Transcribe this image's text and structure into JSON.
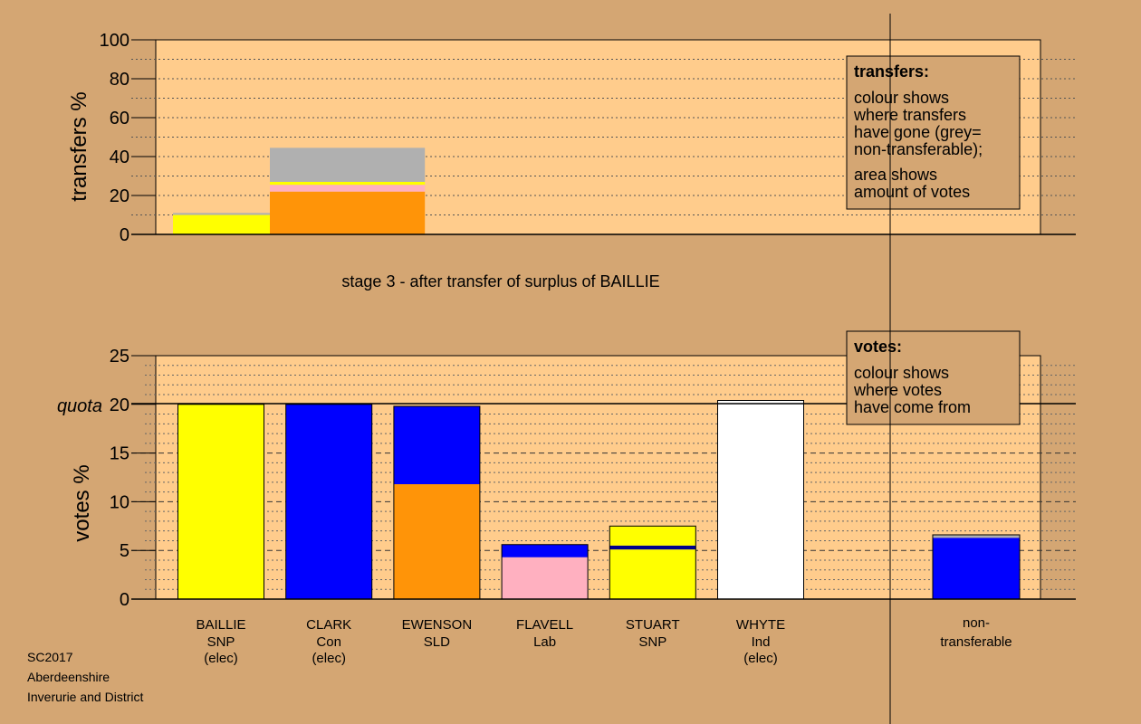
{
  "colors": {
    "background": "#d4a673",
    "plot_bg": "#ffcc8c",
    "yellow": "#ffff00",
    "blue": "#0000ff",
    "orange": "#ff9408",
    "pink": "#ffb0c0",
    "white": "#ffffff",
    "grey": "#b0b0b0",
    "navy": "#00008b"
  },
  "chart_data": [
    {
      "type": "bar",
      "ylabel": "transfers %",
      "ylim": [
        0,
        100
      ],
      "yticks": [
        "0",
        "20",
        "40",
        "60",
        "80",
        "100"
      ],
      "caption": "stage 3 - after transfer of surplus of BAILLIE",
      "legend": {
        "title": "transfers:",
        "lines1": [
          "colour shows",
          "where transfers",
          "have gone (grey=",
          "non-transferable);"
        ],
        "lines2": [
          "area shows",
          "amount of votes"
        ]
      },
      "blocks": [
        {
          "x_from": 0,
          "x_to": 1,
          "segments": [
            {
              "color": "yellow",
              "from": 0,
              "to": 10
            },
            {
              "color": "grey",
              "from": 10,
              "to": 11
            }
          ]
        },
        {
          "x_from": 1,
          "x_to": 2.6,
          "segments": [
            {
              "color": "orange",
              "from": 0,
              "to": 22
            },
            {
              "color": "pink",
              "from": 22,
              "to": 25.5
            },
            {
              "color": "yellow",
              "from": 25.5,
              "to": 27
            },
            {
              "color": "grey",
              "from": 27,
              "to": 44.5
            }
          ]
        }
      ]
    },
    {
      "type": "bar",
      "ylabel": "votes %",
      "ylim": [
        0,
        25
      ],
      "yticks": [
        "0",
        "5",
        "10",
        "15",
        "20",
        "25"
      ],
      "quota": {
        "label": "quota",
        "value": 20
      },
      "legend": {
        "title": "votes:",
        "lines1": [
          "colour shows",
          "where votes",
          "have come from"
        ]
      },
      "categories": [
        {
          "name": "BAILLIE",
          "party": "SNP",
          "note": "(elec)"
        },
        {
          "name": "CLARK",
          "party": "Con",
          "note": "(elec)"
        },
        {
          "name": "EWENSON",
          "party": "SLD",
          "note": ""
        },
        {
          "name": "FLAVELL",
          "party": "Lab",
          "note": ""
        },
        {
          "name": "STUART",
          "party": "SNP",
          "note": ""
        },
        {
          "name": "WHYTE",
          "party": "Ind",
          "note": "(elec)"
        }
      ],
      "bars": [
        [
          {
            "color": "yellow",
            "value": 20
          }
        ],
        [
          {
            "color": "blue",
            "value": 20
          }
        ],
        [
          {
            "color": "orange",
            "value": 11.8
          },
          {
            "color": "blue",
            "value": 8
          }
        ],
        [
          {
            "color": "pink",
            "value": 4.3
          },
          {
            "color": "blue",
            "value": 1.3
          }
        ],
        [
          {
            "color": "yellow",
            "value": 5.1
          },
          {
            "color": "navy",
            "value": 0.4
          },
          {
            "color": "yellow",
            "value": 2
          }
        ],
        [
          {
            "color": "white",
            "value": 20.4
          }
        ]
      ],
      "nontransferable": {
        "label_lines": [
          "non-",
          "transferable"
        ],
        "segments": [
          {
            "color": "blue",
            "value": 6.3
          },
          {
            "color": "grey",
            "value": 0.3
          }
        ]
      }
    }
  ],
  "footer": {
    "line1": "SC2017",
    "line2": "Aberdeenshire",
    "line3": "Inverurie and District"
  }
}
